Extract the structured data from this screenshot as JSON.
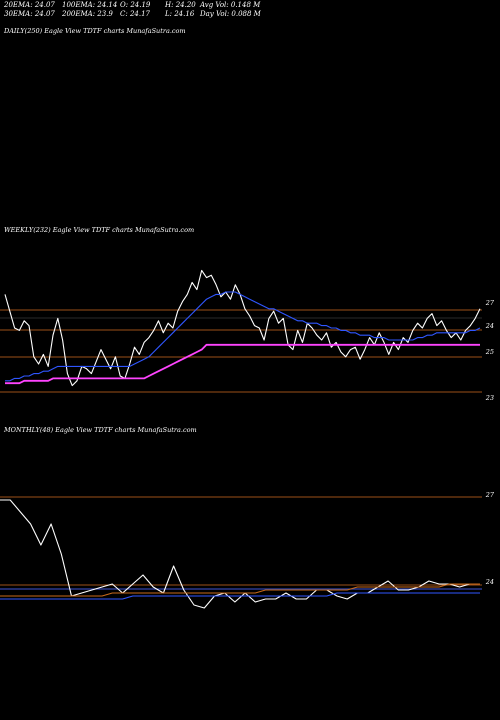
{
  "header": {
    "ema20": "20EMA: 24.07",
    "ema30": "30EMA: 24.07",
    "ema100": "100EMA: 24.14",
    "ema200": "200EMA: 23.9",
    "open": "O: 24.19",
    "close": "C: 24.17",
    "high": "H: 24.20",
    "low": "L: 24.16",
    "avg_vol": "Avg Vol: 0.148 M",
    "day_vol": "Day Vol: 0.088 M"
  },
  "panels": {
    "daily": {
      "title": "DAILY(250) Eagle  View  TDTF charts MunafaSutra.com"
    },
    "weekly": {
      "title": "WEEKLY(232) Eagle  View  TDTF charts MunafaSutra.com",
      "axis_labels": [
        "27",
        "24",
        "25",
        "23"
      ]
    },
    "monthly": {
      "title": "MONTHLY(48) Eagle  View  TDTF charts MunafaSutra.com",
      "axis_labels": [
        "27",
        "24"
      ]
    }
  },
  "colors": {
    "background": "#000000",
    "price": "#ffffff",
    "ema_orange": "#c86a1a",
    "ema_blue": "#2f56ff",
    "ema_magenta": "#ff44ff",
    "ema_grey": "#9a9a9a",
    "ref_line": "#d06a20",
    "vol_line": "#3aa0ff"
  },
  "chart_data": [
    {
      "type": "line",
      "name": "weekly",
      "x": [
        0,
        1,
        2,
        3,
        4,
        5,
        6,
        7,
        8,
        9,
        10,
        11,
        12,
        13,
        14,
        15,
        16,
        17,
        18,
        19,
        20,
        21,
        22,
        23,
        24,
        25,
        26,
        27,
        28,
        29,
        30,
        31,
        32,
        33,
        34,
        35,
        36,
        37,
        38,
        39,
        40,
        41,
        42,
        43,
        44,
        45,
        46,
        47,
        48,
        49,
        50,
        51,
        52,
        53,
        54,
        55,
        56,
        57,
        58,
        59,
        60,
        61,
        62,
        63,
        64,
        65,
        66,
        67,
        68,
        69,
        70,
        71,
        72,
        73,
        74,
        75,
        76,
        77,
        78,
        79,
        80,
        81,
        82,
        83,
        84,
        85,
        86,
        87,
        88,
        89,
        90,
        91,
        92,
        93,
        94,
        95,
        96,
        97,
        98,
        99
      ],
      "series": [
        {
          "role": "price",
          "values": [
            27.9,
            27.2,
            26.5,
            26.4,
            26.8,
            26.6,
            25.3,
            25.0,
            25.4,
            24.9,
            26.2,
            26.9,
            26.0,
            24.6,
            24.1,
            24.3,
            24.9,
            24.8,
            24.6,
            25.1,
            25.6,
            25.2,
            24.8,
            25.3,
            24.5,
            24.4,
            25.0,
            25.7,
            25.4,
            25.9,
            26.1,
            26.4,
            26.8,
            26.3,
            26.7,
            26.5,
            27.2,
            27.6,
            27.9,
            28.4,
            28.1,
            28.9,
            28.6,
            28.7,
            28.3,
            27.8,
            28.0,
            27.7,
            28.3,
            27.9,
            27.3,
            27.0,
            26.6,
            26.5,
            26.0,
            26.9,
            27.2,
            26.7,
            26.9,
            25.8,
            25.6,
            26.4,
            25.9,
            26.7,
            26.5,
            26.2,
            26.0,
            26.3,
            25.7,
            25.9,
            25.5,
            25.3,
            25.6,
            25.7,
            25.2,
            25.6,
            26.1,
            25.8,
            26.3,
            25.9,
            25.4,
            25.9,
            25.6,
            26.1,
            25.9,
            26.4,
            26.7,
            26.5,
            26.9,
            27.1,
            26.6,
            26.8,
            26.4,
            26.1,
            26.3,
            26.0,
            26.4,
            26.6,
            26.9,
            27.3
          ]
        },
        {
          "role": "ema_blue",
          "values": [
            24.3,
            24.3,
            24.4,
            24.4,
            24.5,
            24.5,
            24.6,
            24.6,
            24.7,
            24.7,
            24.8,
            24.9,
            24.9,
            24.9,
            24.9,
            24.9,
            24.9,
            24.9,
            24.9,
            24.9,
            24.9,
            24.9,
            24.9,
            24.9,
            24.9,
            24.9,
            24.9,
            25.0,
            25.1,
            25.2,
            25.3,
            25.5,
            25.7,
            25.9,
            26.1,
            26.3,
            26.5,
            26.7,
            26.9,
            27.1,
            27.3,
            27.5,
            27.7,
            27.8,
            27.9,
            27.9,
            28.0,
            28.0,
            28.0,
            27.9,
            27.8,
            27.7,
            27.6,
            27.5,
            27.4,
            27.3,
            27.3,
            27.2,
            27.1,
            27.0,
            26.9,
            26.8,
            26.8,
            26.7,
            26.7,
            26.7,
            26.6,
            26.6,
            26.5,
            26.5,
            26.4,
            26.4,
            26.3,
            26.3,
            26.2,
            26.2,
            26.2,
            26.1,
            26.1,
            26.1,
            26.0,
            26.0,
            26.0,
            26.0,
            26.0,
            26.0,
            26.1,
            26.1,
            26.2,
            26.2,
            26.3,
            26.3,
            26.3,
            26.3,
            26.3,
            26.3,
            26.3,
            26.4,
            26.4,
            26.5
          ]
        },
        {
          "role": "ema_magenta",
          "values": [
            24.2,
            24.2,
            24.2,
            24.2,
            24.3,
            24.3,
            24.3,
            24.3,
            24.3,
            24.3,
            24.4,
            24.4,
            24.4,
            24.4,
            24.4,
            24.4,
            24.4,
            24.4,
            24.4,
            24.4,
            24.4,
            24.4,
            24.4,
            24.4,
            24.4,
            24.4,
            24.4,
            24.4,
            24.4,
            24.4,
            24.5,
            24.6,
            24.7,
            24.8,
            24.9,
            25.0,
            25.1,
            25.2,
            25.3,
            25.4,
            25.5,
            25.6,
            25.8,
            25.8,
            25.8,
            25.8,
            25.8,
            25.8,
            25.8,
            25.8,
            25.8,
            25.8,
            25.8,
            25.8,
            25.8,
            25.8,
            25.8,
            25.8,
            25.8,
            25.8,
            25.8,
            25.8,
            25.8,
            25.8,
            25.8,
            25.8,
            25.8,
            25.8,
            25.8,
            25.8,
            25.8,
            25.8,
            25.8,
            25.8,
            25.8,
            25.8,
            25.8,
            25.8,
            25.8,
            25.8,
            25.8,
            25.8,
            25.8,
            25.8,
            25.8,
            25.8,
            25.8,
            25.8,
            25.8,
            25.8,
            25.8,
            25.8,
            25.8,
            25.8,
            25.8,
            25.8,
            25.8,
            25.8,
            25.8,
            25.8
          ]
        }
      ]
    },
    {
      "type": "line",
      "name": "monthly",
      "x": [
        0,
        1,
        2,
        3,
        4,
        5,
        6,
        7,
        8,
        9,
        10,
        11,
        12,
        13,
        14,
        15,
        16,
        17,
        18,
        19,
        20,
        21,
        22,
        23,
        24,
        25,
        26,
        27,
        28,
        29,
        30,
        31,
        32,
        33,
        34,
        35,
        36,
        37,
        38,
        39,
        40,
        41,
        42,
        43,
        44,
        45,
        46,
        47
      ],
      "series": [
        {
          "role": "price",
          "values": [
            27.0,
            27.0,
            26.6,
            26.2,
            25.5,
            26.2,
            25.2,
            23.8,
            23.9,
            24.0,
            24.1,
            24.2,
            23.9,
            24.2,
            24.5,
            24.1,
            23.9,
            24.8,
            24.0,
            23.5,
            23.4,
            23.8,
            23.9,
            23.6,
            23.9,
            23.6,
            23.7,
            23.7,
            23.9,
            23.7,
            23.7,
            24.0,
            24.0,
            23.8,
            23.7,
            23.9,
            23.9,
            24.1,
            24.3,
            24.0,
            24.0,
            24.1,
            24.3,
            24.2,
            24.2,
            24.1,
            24.2,
            24.2
          ]
        },
        {
          "role": "ema_orange",
          "values": [
            23.8,
            23.8,
            23.8,
            23.8,
            23.8,
            23.8,
            23.8,
            23.8,
            23.8,
            23.8,
            23.8,
            23.9,
            23.9,
            23.9,
            23.9,
            23.9,
            23.9,
            23.9,
            23.9,
            23.9,
            23.9,
            23.9,
            23.9,
            23.9,
            23.9,
            23.9,
            24.0,
            24.0,
            24.0,
            24.0,
            24.0,
            24.0,
            24.0,
            24.0,
            24.0,
            24.1,
            24.1,
            24.1,
            24.1,
            24.1,
            24.1,
            24.1,
            24.1,
            24.1,
            24.2,
            24.2,
            24.2,
            24.2
          ]
        },
        {
          "role": "ema_blue",
          "values": [
            23.7,
            23.7,
            23.7,
            23.7,
            23.7,
            23.7,
            23.7,
            23.7,
            23.7,
            23.7,
            23.7,
            23.7,
            23.7,
            23.8,
            23.8,
            23.8,
            23.8,
            23.8,
            23.8,
            23.8,
            23.8,
            23.8,
            23.8,
            23.8,
            23.8,
            23.8,
            23.8,
            23.8,
            23.8,
            23.8,
            23.8,
            23.8,
            23.8,
            23.9,
            23.9,
            23.9,
            23.9,
            23.9,
            23.9,
            23.9,
            23.9,
            23.9,
            23.9,
            23.9,
            23.9,
            23.9,
            23.9,
            23.9
          ]
        }
      ]
    }
  ]
}
